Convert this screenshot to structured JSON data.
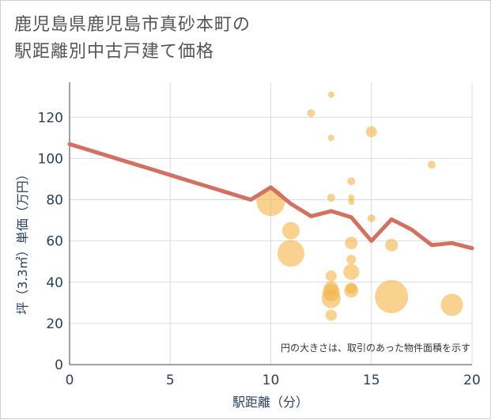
{
  "chart_data": {
    "type": "scatter",
    "title_line1": "鹿児島県鹿児島市真砂本町の",
    "title_line2": "駅距離別中古戸建て価格",
    "xlabel": "駅距離（分）",
    "ylabel": "坪（3.3㎡）単価（万円）",
    "xlim": [
      0,
      20
    ],
    "ylim": [
      0,
      137
    ],
    "x_ticks": [
      0,
      5,
      10,
      15,
      20
    ],
    "y_ticks": [
      0,
      20,
      40,
      60,
      80,
      100,
      120
    ],
    "annotation": "円の大きさは、取引のあった物件面積を示す",
    "colors": {
      "bubble": "#f3b443",
      "line": "#d47060",
      "grid": "#d8dde5",
      "text": "#2a3f5f"
    },
    "scatter": [
      {
        "x": 10,
        "y": 79,
        "s": 18
      },
      {
        "x": 11,
        "y": 65,
        "s": 11
      },
      {
        "x": 11,
        "y": 54,
        "s": 17
      },
      {
        "x": 12,
        "y": 122,
        "s": 5
      },
      {
        "x": 13,
        "y": 131,
        "s": 4
      },
      {
        "x": 13,
        "y": 110,
        "s": 4
      },
      {
        "x": 13,
        "y": 81,
        "s": 5
      },
      {
        "x": 13,
        "y": 43,
        "s": 7
      },
      {
        "x": 13,
        "y": 37,
        "s": 9
      },
      {
        "x": 13,
        "y": 35,
        "s": 11
      },
      {
        "x": 13,
        "y": 32,
        "s": 12
      },
      {
        "x": 13,
        "y": 24,
        "s": 7
      },
      {
        "x": 14,
        "y": 89,
        "s": 5
      },
      {
        "x": 14,
        "y": 81,
        "s": 4
      },
      {
        "x": 14,
        "y": 79,
        "s": 4
      },
      {
        "x": 14,
        "y": 59,
        "s": 8
      },
      {
        "x": 14,
        "y": 51,
        "s": 6
      },
      {
        "x": 14,
        "y": 45,
        "s": 10
      },
      {
        "x": 14,
        "y": 37,
        "s": 7
      },
      {
        "x": 14,
        "y": 36,
        "s": 9
      },
      {
        "x": 15,
        "y": 113,
        "s": 7
      },
      {
        "x": 15,
        "y": 71,
        "s": 5
      },
      {
        "x": 16,
        "y": 58,
        "s": 8
      },
      {
        "x": 16,
        "y": 33,
        "s": 21
      },
      {
        "x": 18,
        "y": 97,
        "s": 5
      },
      {
        "x": 19,
        "y": 29,
        "s": 14
      }
    ],
    "line": {
      "x": [
        0,
        1,
        2,
        3,
        4,
        5,
        6,
        7,
        8,
        9,
        10,
        11,
        12,
        13,
        14,
        15,
        16,
        17,
        18,
        19,
        20
      ],
      "y": [
        107,
        104,
        101,
        98,
        95,
        92,
        89,
        86,
        83,
        80,
        86,
        78,
        72,
        74.5,
        71.5,
        60,
        70.5,
        65.5,
        58,
        59,
        56.5
      ]
    }
  }
}
